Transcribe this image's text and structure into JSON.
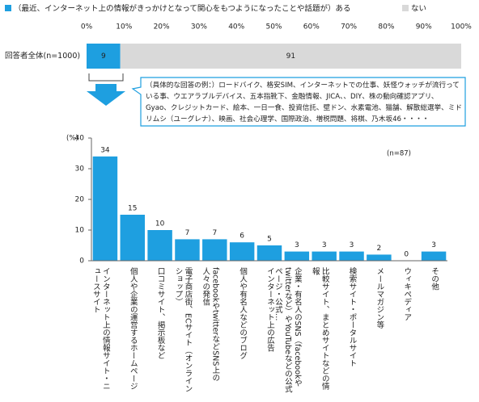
{
  "chart_data": [
    {
      "type": "barh",
      "categories": [
        "回答者全体(n=1000)"
      ],
      "series": [
        {
          "name": "（最近、インターネット上の情報がきっかけとなって関心をもつようになったことや話題が）ある",
          "color": "#1e9fe0",
          "values": [
            9
          ]
        },
        {
          "name": "ない",
          "color": "#d9d9d9",
          "values": [
            91
          ]
        }
      ],
      "xlim": [
        0,
        100
      ],
      "xticks": [
        {
          "value": 0,
          "label": "0%"
        },
        {
          "value": 10,
          "label": "10%"
        },
        {
          "value": 20,
          "label": "20%"
        },
        {
          "value": 30,
          "label": "30%"
        },
        {
          "value": 40,
          "label": "40%"
        },
        {
          "value": 50,
          "label": "50%"
        },
        {
          "value": 60,
          "label": "60%"
        },
        {
          "value": 70,
          "label": "70%"
        },
        {
          "value": 80,
          "label": "80%"
        },
        {
          "value": 90,
          "label": "90%"
        },
        {
          "value": 100,
          "label": "100%"
        }
      ],
      "annotation": "（具体的な回答の例：）ロードバイク、格安SIM、インターネットでの仕事、妖怪ウォッチが流行っている事、ウエアラブルデバイス、五本指靴下、金融情報、JICA、、DIY、株の動向確認アプリ、Gyao、クレジットカード、絵本、一日一食、投資信託、壁ドン、水素電池、猫舗、解散総選挙、ミドリムシ（ユーグレナ）、映画、社会心理学、国際政治、増税問題、将棋、乃木坂46・・・・"
    },
    {
      "type": "bar",
      "y_label": "(%)",
      "note": "(n=87)",
      "categories": [
        "インターネット上の情報サイト・ニュースサイト",
        "個人や企業の運営するホームページ",
        "口コミサイト、掲示板など",
        "電子商店街、ECサイト（オンラインショップ）",
        "facebookやtwitterなどSNS上の人々の発信",
        "個人や有名人などのブログ",
        "インターネット上の広告",
        "企業・有名人のSNS（facebookやtwitterなど）やYouTubeなどの公式ページ・公式…",
        "比較サイト、まとめサイトなどの情報",
        "検索サイト・ポータルサイト",
        "メールマガジン等",
        "ウィキペディア",
        "その他"
      ],
      "values": [
        34,
        15,
        10,
        7,
        7,
        6,
        5,
        3,
        3,
        3,
        2,
        0,
        3
      ],
      "color": "#1e9fe0",
      "ylim": [
        0,
        40
      ],
      "yticks": [
        0,
        10,
        20,
        30,
        40
      ]
    }
  ]
}
